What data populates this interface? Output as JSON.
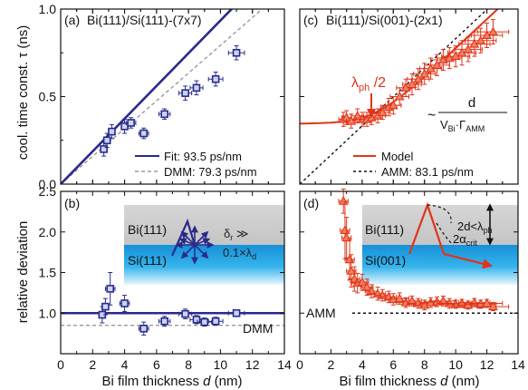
{
  "colors": {
    "blue": "#2a2a8c",
    "blue_fill": "#c9d6f2",
    "red": "#e0341a",
    "red_fill": "#f08060",
    "gray": "#999999",
    "black": "#111111",
    "bi_gray": "#cfcfcf",
    "si_cyan": "#21a6e4"
  },
  "chart_data": [
    {
      "type": "scatter",
      "panel_label": "(a)",
      "title": "Bi(111)/Si(111)-(7x7)",
      "ylabel": "cool. time const. τ (ns)",
      "xlim": [
        0,
        14
      ],
      "ylim": [
        0,
        1.0
      ],
      "yticks": [
        "0.0",
        "0.5",
        "1.0"
      ],
      "series": [
        {
          "name": "data",
          "x": [
            2.7,
            2.9,
            3.2,
            4.0,
            4.4,
            5.2,
            6.5,
            7.8,
            8.5,
            9.7,
            11.0
          ],
          "y": [
            0.2,
            0.25,
            0.3,
            0.33,
            0.35,
            0.29,
            0.4,
            0.52,
            0.55,
            0.6,
            0.75
          ],
          "xerr": [
            0.2,
            0.2,
            0.2,
            0.2,
            0.3,
            0.3,
            0.35,
            0.4,
            0.4,
            0.45,
            0.5
          ],
          "yerr": [
            0.04,
            0.04,
            0.04,
            0.04,
            0.03,
            0.03,
            0.03,
            0.04,
            0.04,
            0.04,
            0.04
          ]
        }
      ],
      "legend": [
        {
          "label": "Fit: 93.5 ps/nm"
        },
        {
          "label": "DMM: 79.3 ps/nm"
        }
      ],
      "fit_slope_ns_per_nm": 0.0935,
      "dmm_slope_ns_per_nm": 0.0793
    },
    {
      "type": "scatter",
      "panel_label": "(c)",
      "title": "Bi(111)/Si(001)-(2x1)",
      "xlim": [
        0,
        14
      ],
      "ylim": [
        0,
        1.0
      ],
      "annotation_lambda": "λ",
      "annotation_lambda_sub": "ph",
      "annotation_lambda_tail": " /2",
      "formula_prefix": "~",
      "formula_numerator": "d",
      "formula_denominator": "V",
      "formula_den_sub1": "Bi",
      "formula_den_mid": "·Γ",
      "formula_den_sub2": "AMM",
      "series": [
        {
          "name": "data",
          "x": [
            2.8,
            3.0,
            3.3,
            3.7,
            4.0,
            4.3,
            4.6,
            5.0,
            5.3,
            5.7,
            6.0,
            6.4,
            6.8,
            7.2,
            7.6,
            8.0,
            8.4,
            8.8,
            9.2,
            9.6,
            10.0,
            10.4,
            10.8,
            11.2,
            11.6,
            12.0,
            12.4
          ],
          "y": [
            0.37,
            0.38,
            0.36,
            0.39,
            0.37,
            0.37,
            0.38,
            0.39,
            0.41,
            0.44,
            0.45,
            0.5,
            0.55,
            0.57,
            0.6,
            0.63,
            0.66,
            0.68,
            0.71,
            0.72,
            0.73,
            0.75,
            0.77,
            0.8,
            0.82,
            0.85,
            0.87
          ],
          "xerr": [
            0.3,
            0.3,
            0.3,
            0.4,
            0.4,
            0.4,
            0.4,
            0.5,
            0.5,
            0.5,
            0.5,
            0.6,
            0.6,
            0.6,
            0.7,
            0.7,
            0.7,
            0.8,
            0.8,
            0.8,
            0.9,
            0.9,
            0.9,
            1.0,
            1.0,
            1.0,
            1.0
          ],
          "yerr": [
            0.04,
            0.04,
            0.04,
            0.04,
            0.04,
            0.04,
            0.04,
            0.04,
            0.04,
            0.05,
            0.05,
            0.05,
            0.05,
            0.06,
            0.06,
            0.06,
            0.06,
            0.06,
            0.06,
            0.06,
            0.06,
            0.07,
            0.07,
            0.07,
            0.07,
            0.07,
            0.07
          ]
        }
      ],
      "legend": [
        {
          "label": "Model"
        },
        {
          "label": "AMM: 83.1 ps/nm"
        }
      ],
      "amm_slope_ns_per_nm": 0.0831
    },
    {
      "type": "scatter",
      "panel_label": "(b)",
      "xlabel_prefix": "Bi film thickness ",
      "xlabel_var": "d",
      "xlabel_unit": " (nm)",
      "ylabel": "relative deviation",
      "xlim": [
        0,
        14
      ],
      "ylim": [
        0.5,
        2.5
      ],
      "xticks": [
        "0",
        "2",
        "4",
        "6",
        "8",
        "10",
        "12",
        "14"
      ],
      "yticks": [
        "1.0",
        "1.5",
        "2.0",
        "2.5"
      ],
      "inset_bi_label": "Bi(111)",
      "inset_si_label": "Si(111)",
      "inset_delta": "δ",
      "inset_delta_sub": "r",
      "inset_gg": " ≫",
      "inset_ratio": "0.1×λ",
      "inset_ratio_sub": "d",
      "dmm_label": "DMM",
      "series": [
        {
          "name": "data",
          "x": [
            2.6,
            2.8,
            3.1,
            4.0,
            5.2,
            6.5,
            7.8,
            8.5,
            9.0,
            9.7,
            11.0
          ],
          "y": [
            0.98,
            1.08,
            1.3,
            1.12,
            0.81,
            0.9,
            0.99,
            0.92,
            0.89,
            0.9,
            1.0
          ],
          "xerr": [
            0.2,
            0.2,
            0.3,
            0.3,
            0.3,
            0.35,
            0.4,
            0.4,
            0.45,
            0.45,
            0.5
          ],
          "yerr": [
            0.1,
            0.1,
            0.2,
            0.1,
            0.08,
            0.06,
            0.06,
            0.05,
            0.05,
            0.05,
            0.04
          ]
        }
      ],
      "fit_level": 1.0,
      "dmm_level": 0.85
    },
    {
      "type": "scatter",
      "panel_label": "(d)",
      "xlabel_prefix": "Bi film thickness ",
      "xlabel_var": "d",
      "xlabel_unit": " (nm)",
      "xlim": [
        0,
        14
      ],
      "ylim": [
        0.5,
        2.5
      ],
      "xticks": [
        "0",
        "2",
        "4",
        "6",
        "8",
        "10",
        "12",
        "14"
      ],
      "inset_bi_label": "Bi(111)",
      "inset_si_label": "Si(001)",
      "inset_cond_a": "2d<λ",
      "inset_cond_a_sub": "ph",
      "inset_cond_b": "2α",
      "inset_cond_b_sub": "crit",
      "amm_label": "AMM",
      "series": [
        {
          "name": "data",
          "x": [
            2.8,
            2.9,
            3.0,
            3.2,
            3.3,
            3.5,
            3.7,
            4.0,
            4.3,
            4.6,
            5.0,
            5.3,
            5.7,
            6.0,
            6.4,
            6.8,
            7.2,
            7.6,
            8.0,
            8.4,
            8.8,
            9.2,
            9.6,
            10.0,
            10.4,
            10.8,
            11.2,
            11.6,
            12.0,
            12.4
          ],
          "y": [
            2.38,
            2.02,
            1.93,
            1.66,
            1.52,
            1.42,
            1.37,
            1.38,
            1.32,
            1.27,
            1.24,
            1.22,
            1.2,
            1.17,
            1.18,
            1.13,
            1.15,
            1.12,
            1.1,
            1.13,
            1.14,
            1.15,
            1.12,
            1.11,
            1.12,
            1.1,
            1.13,
            1.11,
            1.12,
            1.08
          ],
          "xerr": [
            0.3,
            0.3,
            0.3,
            0.3,
            0.3,
            0.35,
            0.35,
            0.4,
            0.4,
            0.4,
            0.5,
            0.5,
            0.5,
            0.5,
            0.6,
            0.6,
            0.6,
            0.7,
            0.7,
            0.7,
            0.8,
            0.8,
            0.8,
            0.9,
            0.9,
            0.9,
            1.0,
            1.0,
            1.0,
            1.0
          ],
          "yerr": [
            0.15,
            0.35,
            0.25,
            0.25,
            0.2,
            0.15,
            0.12,
            0.1,
            0.1,
            0.08,
            0.08,
            0.07,
            0.07,
            0.07,
            0.07,
            0.06,
            0.06,
            0.06,
            0.06,
            0.06,
            0.06,
            0.06,
            0.06,
            0.05,
            0.05,
            0.05,
            0.05,
            0.05,
            0.05,
            0.05
          ]
        }
      ],
      "amm_level": 1.0
    }
  ]
}
